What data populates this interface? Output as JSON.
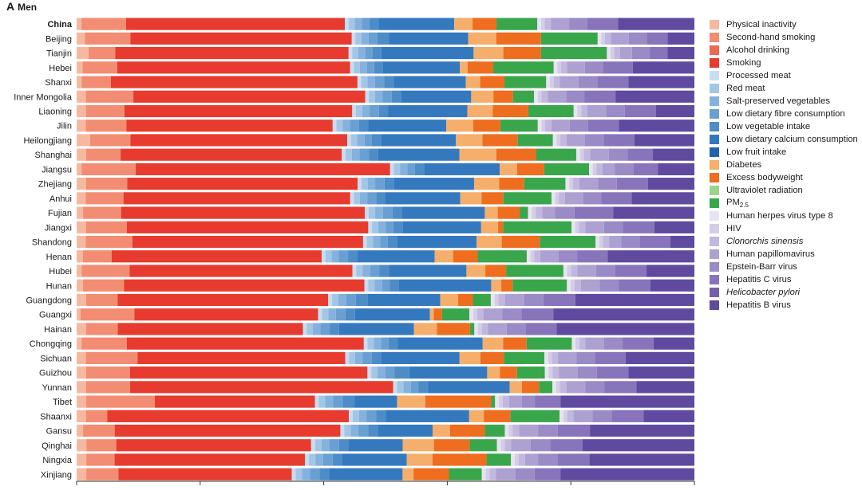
{
  "panel": {
    "letter": "A",
    "title": "Men"
  },
  "chart_data": {
    "type": "bar",
    "orientation": "horizontal",
    "stacked": true,
    "normalized": true,
    "xlim": [
      0,
      1
    ],
    "grid": false,
    "legend_position": "right",
    "categories": [
      "China",
      "Beijing",
      "Tianjin",
      "Hebei",
      "Shanxi",
      "Inner Mongolia",
      "Liaoning",
      "Jilin",
      "Heilongjiang",
      "Shanghai",
      "Jiangsu",
      "Zhejiang",
      "Anhui",
      "Fujian",
      "Jiangxi",
      "Shandong",
      "Henan",
      "Hubei",
      "Hunan",
      "Guangdong",
      "Guangxi",
      "Hainan",
      "Chongqing",
      "Sichuan",
      "Guizhou",
      "Yunnan",
      "Tibet",
      "Shaanxi",
      "Gansu",
      "Qinghai",
      "Ningxia",
      "Xinjiang"
    ],
    "bold_categories": [
      "China"
    ],
    "series": [
      {
        "name": "Physical inactivity",
        "color": "#f6b9a0",
        "italic": false
      },
      {
        "name": "Second-hand smoking",
        "color": "#f28d73",
        "italic": false
      },
      {
        "name": "Alcohol drinking",
        "color": "#ec6a52",
        "italic": false
      },
      {
        "name": "Smoking",
        "color": "#e63b2e",
        "italic": false
      },
      {
        "name": "Processed meat",
        "color": "#c8ddf0",
        "italic": false
      },
      {
        "name": "Red meat",
        "color": "#a4c6e6",
        "italic": false
      },
      {
        "name": "Salt-preserved vegetables",
        "color": "#85b2dc",
        "italic": false
      },
      {
        "name": "Low dietary fibre consumption",
        "color": "#6a9fd2",
        "italic": false
      },
      {
        "name": "Low vegetable intake",
        "color": "#4e8cc7",
        "italic": false
      },
      {
        "name": "Low dietary calcium consumption",
        "color": "#3479be",
        "italic": false
      },
      {
        "name": "Low fruit intake",
        "color": "#1f63ae",
        "italic": false
      },
      {
        "name": "Diabetes",
        "color": "#f5ae6b",
        "italic": false
      },
      {
        "name": "Excess bodyweight",
        "color": "#ef6d1e",
        "italic": false
      },
      {
        "name": "Ultraviolet radiation",
        "color": "#9dd48c",
        "italic": false
      },
      {
        "name": "PM2.5",
        "color": "#3aa64c",
        "italic": false
      },
      {
        "name": "Human herpes virus type 8",
        "color": "#e7e3f1",
        "italic": false
      },
      {
        "name": "HIV",
        "color": "#d4cde8",
        "italic": false
      },
      {
        "name": "Clonorchis sinensis",
        "color": "#c2b8de",
        "italic": true
      },
      {
        "name": "Human papillomavirus",
        "color": "#ada1d1",
        "italic": false
      },
      {
        "name": "Epstein-Barr virus",
        "color": "#9a8bc6",
        "italic": false
      },
      {
        "name": "Hepatitis C virus",
        "color": "#8774ba",
        "italic": false
      },
      {
        "name": "Helicobacter pylori",
        "color": "#7560ae",
        "italic": true
      },
      {
        "name": "Hepatitis B virus",
        "color": "#5f4a9f",
        "italic": false
      }
    ],
    "values": [
      [
        0.8,
        7.3,
        0,
        35.8,
        0.6,
        1.0,
        1.2,
        1.2,
        1.5,
        12.4,
        0,
        3.0,
        3.9,
        0,
        6.7,
        0.6,
        0.6,
        1.0,
        3.0,
        3.0,
        5.0,
        0,
        12.5
      ],
      [
        1.4,
        7.6,
        0,
        37.1,
        0.6,
        1.0,
        1.2,
        1.5,
        1.9,
        13.3,
        0,
        4.7,
        7.5,
        0,
        9.5,
        0.6,
        0.6,
        1.0,
        3.0,
        3.0,
        3.5,
        0,
        4.5
      ],
      [
        2.0,
        4.5,
        0,
        39.2,
        0.6,
        1.0,
        1.2,
        1.2,
        1.5,
        15.5,
        0,
        5.0,
        6.3,
        0,
        11.1,
        0.6,
        0.6,
        1.0,
        2.0,
        3.0,
        3.0,
        0,
        4.5
      ],
      [
        1.0,
        5.8,
        0,
        38.9,
        0.6,
        1.0,
        1.2,
        1.2,
        1.5,
        12.8,
        0,
        1.3,
        4.3,
        0,
        10.1,
        0.6,
        0.6,
        1.0,
        3.0,
        3.0,
        5.0,
        0,
        10.3
      ],
      [
        0.8,
        4.7,
        0,
        39.6,
        0.6,
        1.0,
        1.2,
        1.5,
        1.5,
        11.6,
        0,
        2.3,
        3.9,
        0,
        6.7,
        0.6,
        0.6,
        1.0,
        3.0,
        3.0,
        5.0,
        0,
        10.6
      ],
      [
        1.5,
        7.7,
        0,
        37.6,
        0.6,
        1.0,
        1.2,
        1.5,
        1.5,
        11.4,
        0,
        3.6,
        3.2,
        0,
        3.4,
        0.6,
        0.6,
        1.0,
        3.0,
        3.0,
        5.0,
        0,
        12.8
      ],
      [
        1.5,
        6.2,
        0,
        36.6,
        0.6,
        1.0,
        1.2,
        1.5,
        1.5,
        12.7,
        0,
        4.1,
        5.7,
        0,
        7.3,
        0.6,
        0.6,
        1.0,
        3.0,
        3.0,
        5.0,
        0,
        6.2
      ],
      [
        1.5,
        6.6,
        0,
        33.6,
        0.6,
        1.0,
        1.2,
        1.5,
        1.5,
        12.7,
        0,
        4.4,
        4.4,
        0,
        6.1,
        0.6,
        0.6,
        1.0,
        3.0,
        3.0,
        5.0,
        0,
        12.3
      ],
      [
        2.2,
        6.5,
        0,
        35.1,
        0.6,
        1.0,
        1.2,
        1.2,
        1.5,
        12.1,
        0,
        4.3,
        5.7,
        0,
        5.7,
        0.6,
        0.6,
        1.0,
        3.0,
        3.0,
        5.0,
        0,
        9.7
      ],
      [
        1.5,
        5.5,
        0,
        35.2,
        0.6,
        1.0,
        1.2,
        1.5,
        1.5,
        12.9,
        0,
        5.9,
        6.3,
        0,
        6.4,
        0.6,
        0.6,
        1.0,
        3.0,
        3.0,
        4.0,
        0,
        6.6
      ],
      [
        0.8,
        8.8,
        0,
        41.3,
        0.6,
        1.0,
        1.2,
        1.2,
        1.5,
        12.3,
        0,
        2.8,
        4.4,
        0,
        7.3,
        0.6,
        0.6,
        1.0,
        2.0,
        3.0,
        4.0,
        0,
        5.9
      ],
      [
        1.5,
        6.6,
        0,
        36.8,
        0.6,
        1.0,
        1.2,
        1.5,
        1.5,
        12.8,
        0,
        4.0,
        4.0,
        0,
        6.6,
        0.6,
        0.6,
        1.0,
        3.0,
        3.0,
        5.0,
        0,
        7.4
      ],
      [
        1.5,
        6.2,
        0,
        37.3,
        0.6,
        1.0,
        1.2,
        1.5,
        1.5,
        12.3,
        0,
        3.5,
        3.6,
        0,
        7.9,
        0.6,
        0.6,
        1.0,
        3.0,
        3.0,
        5.0,
        0,
        10.3
      ],
      [
        1.0,
        5.9,
        0,
        37.8,
        0.6,
        1.0,
        1.2,
        1.5,
        1.5,
        12.8,
        0,
        2.0,
        3.4,
        0,
        1.3,
        0.6,
        0.6,
        1.0,
        2.0,
        3.0,
        6.0,
        0,
        12.6
      ],
      [
        1.5,
        6.5,
        0,
        38.5,
        0.6,
        1.0,
        1.2,
        1.2,
        1.5,
        12.5,
        0,
        2.7,
        0.8,
        0,
        10.9,
        0.6,
        0.6,
        1.0,
        3.0,
        3.0,
        5.0,
        0,
        6.4
      ],
      [
        1.5,
        7.6,
        0,
        37.6,
        0.6,
        1.0,
        1.2,
        1.2,
        1.5,
        13.0,
        0,
        4.1,
        6.2,
        0,
        9.1,
        0.6,
        0.6,
        1.0,
        2.0,
        3.0,
        5.0,
        0,
        3.9
      ],
      [
        1.0,
        4.7,
        0,
        34.2,
        0.6,
        1.0,
        1.2,
        1.5,
        1.5,
        12.6,
        0,
        3.0,
        4.0,
        0,
        8.0,
        0.6,
        0.6,
        1.0,
        3.0,
        3.0,
        5.0,
        0,
        14.1
      ],
      [
        0.8,
        7.6,
        0,
        35.4,
        0.6,
        1.0,
        1.2,
        1.5,
        1.5,
        12.3,
        0,
        3.0,
        3.3,
        0,
        9.1,
        0.6,
        0.6,
        1.0,
        3.0,
        3.0,
        5.0,
        0,
        7.6
      ],
      [
        1.0,
        6.5,
        0,
        38.1,
        0.6,
        1.0,
        1.2,
        1.2,
        1.5,
        14.6,
        0,
        1.6,
        1.8,
        0,
        8.6,
        0.6,
        0.6,
        1.0,
        3.0,
        3.0,
        5.0,
        0,
        7.0
      ],
      [
        1.5,
        4.9,
        0,
        32.9,
        0.6,
        1.0,
        1.2,
        1.5,
        1.9,
        11.3,
        0,
        2.8,
        2.3,
        0,
        2.8,
        0.6,
        0.6,
        1.0,
        3.0,
        3.0,
        5.0,
        0,
        18.6
      ],
      [
        0.6,
        8.5,
        0,
        28.9,
        0.6,
        1.0,
        1.2,
        1.5,
        1.5,
        11.8,
        0,
        0.6,
        1.3,
        0,
        4.3,
        0.6,
        0.6,
        1.0,
        3.0,
        3.0,
        5.0,
        0,
        22.2
      ],
      [
        1.5,
        5.1,
        0,
        29.7,
        0.6,
        1.0,
        1.2,
        1.5,
        1.5,
        12.0,
        0,
        3.7,
        5.3,
        0,
        0.7,
        0.6,
        0.6,
        1.0,
        3.0,
        3.0,
        5.0,
        0,
        22.1
      ],
      [
        0.8,
        7.3,
        0,
        38.3,
        0.6,
        1.0,
        1.2,
        1.2,
        1.5,
        13.7,
        0,
        3.3,
        3.8,
        0,
        7.3,
        0.6,
        0.6,
        1.0,
        3.0,
        3.0,
        5.0,
        0,
        6.6
      ],
      [
        1.5,
        8.4,
        0,
        33.8,
        0.6,
        1.0,
        1.2,
        1.5,
        1.5,
        12.8,
        0,
        3.4,
        3.8,
        0,
        6.6,
        0.6,
        0.6,
        1.0,
        3.0,
        3.0,
        5.0,
        0,
        11.2
      ],
      [
        1.5,
        6.9,
        0,
        37.5,
        0.6,
        1.0,
        1.2,
        1.5,
        2.3,
        12.3,
        0,
        2.0,
        2.7,
        0,
        4.4,
        0.6,
        0.6,
        1.0,
        3.0,
        3.0,
        5.0,
        0,
        10.4
      ],
      [
        1.5,
        6.9,
        0,
        41.3,
        0.6,
        1.0,
        1.2,
        1.2,
        1.5,
        12.8,
        0,
        1.9,
        2.7,
        0,
        2.1,
        0.6,
        0.6,
        1.0,
        3.0,
        3.0,
        5.0,
        0,
        9.1
      ],
      [
        1.5,
        10.7,
        0,
        25.0,
        0.6,
        1.0,
        1.2,
        1.5,
        1.9,
        6.6,
        0,
        4.4,
        10.3,
        0,
        0.6,
        0.6,
        0.6,
        1.0,
        2.0,
        2.0,
        4.0,
        0,
        20.9
      ],
      [
        1.5,
        3.3,
        0,
        38.0,
        0.6,
        1.0,
        1.2,
        1.5,
        1.5,
        13.1,
        0,
        2.3,
        4.2,
        0,
        7.7,
        0.6,
        0.6,
        1.0,
        3.0,
        3.0,
        5.0,
        0,
        8.0
      ],
      [
        1.0,
        4.9,
        0,
        35.0,
        0.6,
        1.0,
        1.2,
        1.5,
        1.5,
        8.5,
        0,
        2.7,
        5.4,
        0,
        3.1,
        0.6,
        0.6,
        1.0,
        3.0,
        3.0,
        5.0,
        0,
        16.2
      ],
      [
        1.5,
        4.6,
        0,
        30.0,
        0.6,
        1.0,
        1.2,
        1.5,
        1.5,
        8.3,
        0,
        4.8,
        5.5,
        0,
        4.2,
        0.6,
        0.6,
        1.0,
        3.0,
        3.0,
        5.0,
        0,
        17.2
      ],
      [
        1.5,
        4.4,
        0,
        29.6,
        0.6,
        1.0,
        1.2,
        1.5,
        1.5,
        10.0,
        0,
        4.0,
        8.4,
        0,
        3.8,
        0.6,
        0.6,
        1.0,
        2.0,
        3.0,
        5.0,
        0,
        16.3
      ],
      [
        1.5,
        5.0,
        0,
        26.9,
        0.6,
        1.0,
        1.2,
        1.5,
        1.5,
        11.4,
        0,
        1.7,
        5.5,
        0,
        5.1,
        0.6,
        0.6,
        1.0,
        3.0,
        3.0,
        4.0,
        0,
        20.8
      ]
    ]
  }
}
